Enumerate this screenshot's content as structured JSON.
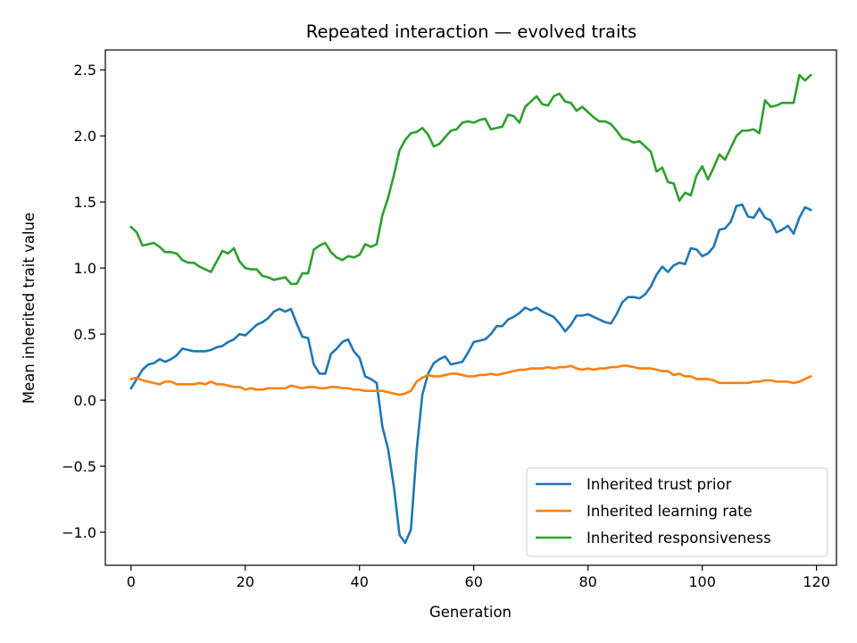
{
  "chart_data": {
    "type": "line",
    "title": "Repeated interaction — evolved traits",
    "xlabel": "Generation",
    "ylabel": "Mean inherited trait value",
    "xlim": [
      -4.5,
      123.5
    ],
    "ylim": [
      -1.25,
      2.65
    ],
    "xticks": [
      0,
      20,
      40,
      60,
      80,
      100,
      120
    ],
    "xtick_labels": [
      "0",
      "20",
      "40",
      "60",
      "80",
      "100",
      "120"
    ],
    "yticks": [
      -1.0,
      -0.5,
      0.0,
      0.5,
      1.0,
      1.5,
      2.0,
      2.5
    ],
    "ytick_labels": [
      "−1.0",
      "−0.5",
      "0.0",
      "0.5",
      "1.0",
      "1.5",
      "2.0",
      "2.5"
    ],
    "grid": false,
    "legend_position": "lower-right",
    "x_start": 0,
    "x_step": 1,
    "series": [
      {
        "name": "Inherited trust prior",
        "color": "#1f77b4",
        "values": [
          0.09,
          0.16,
          0.23,
          0.27,
          0.28,
          0.31,
          0.29,
          0.31,
          0.34,
          0.39,
          0.38,
          0.37,
          0.37,
          0.37,
          0.38,
          0.4,
          0.41,
          0.44,
          0.46,
          0.5,
          0.49,
          0.53,
          0.57,
          0.59,
          0.62,
          0.67,
          0.69,
          0.67,
          0.69,
          0.58,
          0.48,
          0.47,
          0.27,
          0.2,
          0.2,
          0.35,
          0.39,
          0.44,
          0.46,
          0.37,
          0.32,
          0.18,
          0.16,
          0.13,
          -0.2,
          -0.37,
          -0.65,
          -1.02,
          -1.08,
          -0.98,
          -0.38,
          0.04,
          0.2,
          0.28,
          0.31,
          0.33,
          0.27,
          0.28,
          0.29,
          0.36,
          0.44,
          0.45,
          0.46,
          0.5,
          0.56,
          0.56,
          0.61,
          0.63,
          0.66,
          0.7,
          0.68,
          0.7,
          0.67,
          0.65,
          0.63,
          0.58,
          0.52,
          0.57,
          0.64,
          0.64,
          0.65,
          0.63,
          0.61,
          0.59,
          0.58,
          0.65,
          0.74,
          0.78,
          0.78,
          0.77,
          0.8,
          0.86,
          0.95,
          1.01,
          0.97,
          1.02,
          1.04,
          1.03,
          1.15,
          1.14,
          1.09,
          1.11,
          1.16,
          1.29,
          1.3,
          1.35,
          1.47,
          1.48,
          1.39,
          1.38,
          1.45,
          1.38,
          1.36,
          1.27,
          1.29,
          1.32,
          1.26,
          1.38,
          1.46,
          1.44
        ]
      },
      {
        "name": "Inherited learning rate",
        "color": "#ff7f0e",
        "values": [
          0.16,
          0.17,
          0.15,
          0.14,
          0.13,
          0.12,
          0.14,
          0.14,
          0.12,
          0.12,
          0.12,
          0.12,
          0.13,
          0.12,
          0.14,
          0.12,
          0.12,
          0.11,
          0.1,
          0.1,
          0.08,
          0.09,
          0.08,
          0.08,
          0.09,
          0.09,
          0.09,
          0.09,
          0.11,
          0.1,
          0.09,
          0.1,
          0.1,
          0.09,
          0.09,
          0.1,
          0.1,
          0.09,
          0.09,
          0.08,
          0.08,
          0.07,
          0.07,
          0.07,
          0.07,
          0.06,
          0.05,
          0.04,
          0.05,
          0.07,
          0.14,
          0.17,
          0.19,
          0.18,
          0.18,
          0.19,
          0.2,
          0.2,
          0.19,
          0.18,
          0.18,
          0.19,
          0.19,
          0.2,
          0.19,
          0.2,
          0.21,
          0.22,
          0.23,
          0.23,
          0.24,
          0.24,
          0.24,
          0.25,
          0.24,
          0.25,
          0.25,
          0.26,
          0.24,
          0.23,
          0.24,
          0.23,
          0.24,
          0.24,
          0.25,
          0.25,
          0.26,
          0.26,
          0.25,
          0.24,
          0.24,
          0.24,
          0.23,
          0.22,
          0.22,
          0.19,
          0.2,
          0.18,
          0.18,
          0.16,
          0.16,
          0.16,
          0.15,
          0.13,
          0.13,
          0.13,
          0.13,
          0.13,
          0.13,
          0.14,
          0.14,
          0.15,
          0.15,
          0.14,
          0.14,
          0.14,
          0.13,
          0.14,
          0.16,
          0.18
        ]
      },
      {
        "name": "Inherited responsiveness",
        "color": "#2ca02c",
        "values": [
          1.31,
          1.27,
          1.17,
          1.18,
          1.19,
          1.16,
          1.12,
          1.12,
          1.11,
          1.06,
          1.04,
          1.04,
          1.01,
          0.99,
          0.97,
          1.05,
          1.13,
          1.11,
          1.15,
          1.05,
          1.0,
          0.99,
          0.99,
          0.94,
          0.93,
          0.91,
          0.92,
          0.93,
          0.88,
          0.88,
          0.96,
          0.96,
          1.14,
          1.17,
          1.19,
          1.12,
          1.08,
          1.06,
          1.09,
          1.08,
          1.1,
          1.18,
          1.16,
          1.18,
          1.4,
          1.53,
          1.7,
          1.89,
          1.97,
          2.02,
          2.03,
          2.06,
          2.01,
          1.92,
          1.94,
          1.99,
          2.04,
          2.05,
          2.1,
          2.11,
          2.1,
          2.12,
          2.13,
          2.05,
          2.06,
          2.07,
          2.16,
          2.15,
          2.1,
          2.22,
          2.26,
          2.3,
          2.24,
          2.23,
          2.3,
          2.32,
          2.26,
          2.25,
          2.19,
          2.22,
          2.18,
          2.14,
          2.11,
          2.11,
          2.09,
          2.04,
          1.98,
          1.97,
          1.95,
          1.96,
          1.92,
          1.88,
          1.73,
          1.76,
          1.65,
          1.64,
          1.51,
          1.57,
          1.55,
          1.7,
          1.77,
          1.67,
          1.76,
          1.86,
          1.82,
          1.91,
          2.0,
          2.04,
          2.04,
          2.05,
          2.02,
          2.27,
          2.22,
          2.23,
          2.25,
          2.25,
          2.25,
          2.46,
          2.42,
          2.46
        ]
      }
    ]
  }
}
